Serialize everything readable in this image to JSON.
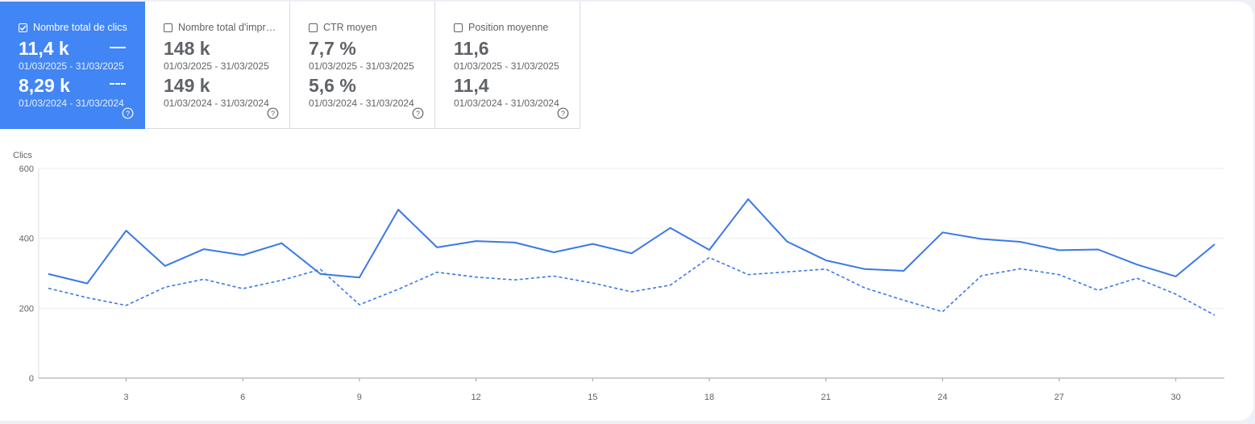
{
  "colors": {
    "accent": "#4285f4",
    "series_solid": "#3b78e7",
    "series_dashed": "#3b78e7"
  },
  "tiles": [
    {
      "label": "Nombre total de clics",
      "checked": true,
      "current": {
        "value": "11,4 k",
        "range": "01/03/2025 - 31/03/2025"
      },
      "previous": {
        "value": "8,29 k",
        "range": "01/03/2024 - 31/03/2024"
      }
    },
    {
      "label": "Nombre total d'impressions",
      "checked": false,
      "current": {
        "value": "148 k",
        "range": "01/03/2025 - 31/03/2025"
      },
      "previous": {
        "value": "149 k",
        "range": "01/03/2024 - 31/03/2024"
      }
    },
    {
      "label": "CTR moyen",
      "checked": false,
      "current": {
        "value": "7,7 %",
        "range": "01/03/2025 - 31/03/2025"
      },
      "previous": {
        "value": "5,6 %",
        "range": "01/03/2024 - 31/03/2024"
      }
    },
    {
      "label": "Position moyenne",
      "checked": false,
      "current": {
        "value": "11,6",
        "range": "01/03/2025 - 31/03/2025"
      },
      "previous": {
        "value": "11,4",
        "range": "01/03/2024 - 31/03/2024"
      }
    }
  ],
  "chart_data": {
    "type": "line",
    "ylabel": "Clics",
    "ylim": [
      0,
      600
    ],
    "yticks": [
      0,
      200,
      400,
      600
    ],
    "xlim": [
      1,
      31
    ],
    "xticks": [
      3,
      6,
      9,
      12,
      15,
      18,
      21,
      24,
      27,
      30
    ],
    "x": [
      1,
      2,
      3,
      4,
      5,
      6,
      7,
      8,
      9,
      10,
      11,
      12,
      13,
      14,
      15,
      16,
      17,
      18,
      19,
      20,
      21,
      22,
      23,
      24,
      25,
      26,
      27,
      28,
      29,
      30,
      31
    ],
    "series": [
      {
        "style": "solid",
        "values": [
          298,
          271,
          422,
          321,
          369,
          352,
          386,
          298,
          288,
          482,
          374,
          392,
          388,
          360,
          384,
          357,
          430,
          367,
          512,
          391,
          337,
          312,
          307,
          417,
          398,
          390,
          366,
          368,
          325,
          291,
          383
        ]
      },
      {
        "style": "dashed",
        "values": [
          257,
          230,
          208,
          260,
          283,
          256,
          280,
          311,
          210,
          254,
          303,
          289,
          281,
          292,
          272,
          247,
          266,
          345,
          296,
          304,
          312,
          258,
          223,
          190,
          293,
          313,
          296,
          251,
          286,
          240,
          180
        ]
      }
    ],
    "grid": true
  }
}
